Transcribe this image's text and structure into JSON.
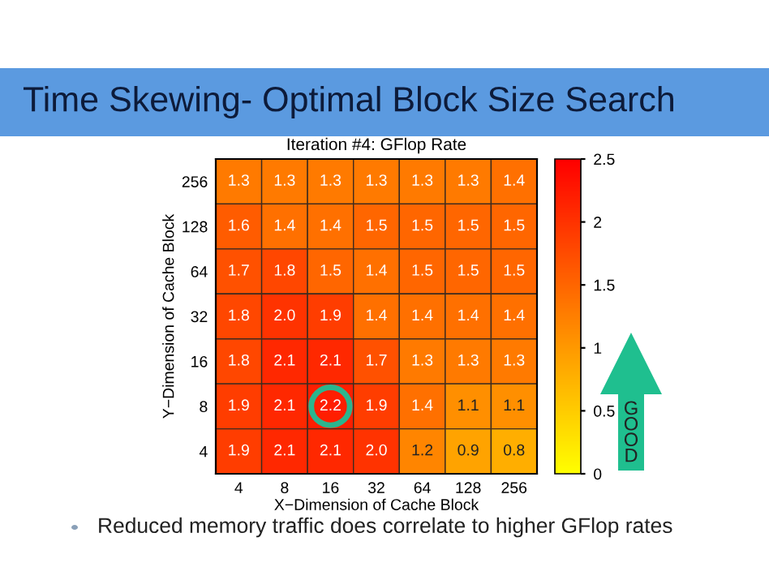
{
  "chart_data": {
    "type": "heatmap",
    "title": "Time Skewing- Optimal Block Size Search",
    "subtitle": "Iteration #4: GFlop Rate",
    "xlabel": "X−Dimension of Cache Block",
    "ylabel": "Y−Dimension of Cache Block",
    "categories": [
      "4",
      "8",
      "16",
      "32",
      "64",
      "128",
      "256"
    ],
    "y_categories": [
      "256",
      "128",
      "64",
      "32",
      "16",
      "8",
      "4"
    ],
    "cells": [
      [
        1.3,
        1.3,
        1.3,
        1.3,
        1.3,
        1.3,
        1.4
      ],
      [
        1.6,
        1.4,
        1.4,
        1.5,
        1.5,
        1.5,
        1.5
      ],
      [
        1.7,
        1.8,
        1.5,
        1.4,
        1.5,
        1.5,
        1.5
      ],
      [
        1.8,
        2.0,
        1.9,
        1.4,
        1.4,
        1.4,
        1.4
      ],
      [
        1.8,
        2.1,
        2.1,
        1.7,
        1.3,
        1.3,
        1.3
      ],
      [
        1.9,
        2.1,
        2.2,
        1.9,
        1.4,
        1.1,
        1.1
      ],
      [
        1.9,
        2.1,
        2.1,
        2.0,
        1.2,
        0.9,
        0.8
      ]
    ],
    "cell_labels": [
      [
        "1.3",
        "1.3",
        "1.3",
        "1.3",
        "1.3",
        "1.3",
        "1.4"
      ],
      [
        "1.6",
        "1.4",
        "1.4",
        "1.5",
        "1.5",
        "1.5",
        "1.5"
      ],
      [
        "1.7",
        "1.8",
        "1.5",
        "1.4",
        "1.5",
        "1.5",
        "1.5"
      ],
      [
        "1.8",
        "2.0",
        "1.9",
        "1.4",
        "1.4",
        "1.4",
        "1.4"
      ],
      [
        "1.8",
        "2.1",
        "2.1",
        "1.7",
        "1.3",
        "1.3",
        "1.3"
      ],
      [
        "1.9",
        "2.1",
        "2.2",
        "1.9",
        "1.4",
        "1.1",
        "1.1"
      ],
      [
        "1.9",
        "2.1",
        "2.1",
        "2.0",
        "1.2",
        "0.9",
        "0.8"
      ]
    ],
    "clim": [
      0,
      2.5
    ],
    "cticks": [
      0,
      0.5,
      1,
      1.5,
      2,
      2.5
    ],
    "annotations": [
      "GOOD",
      "Reduced memory traffic does correlate to higher GFlop rates"
    ]
  }
}
